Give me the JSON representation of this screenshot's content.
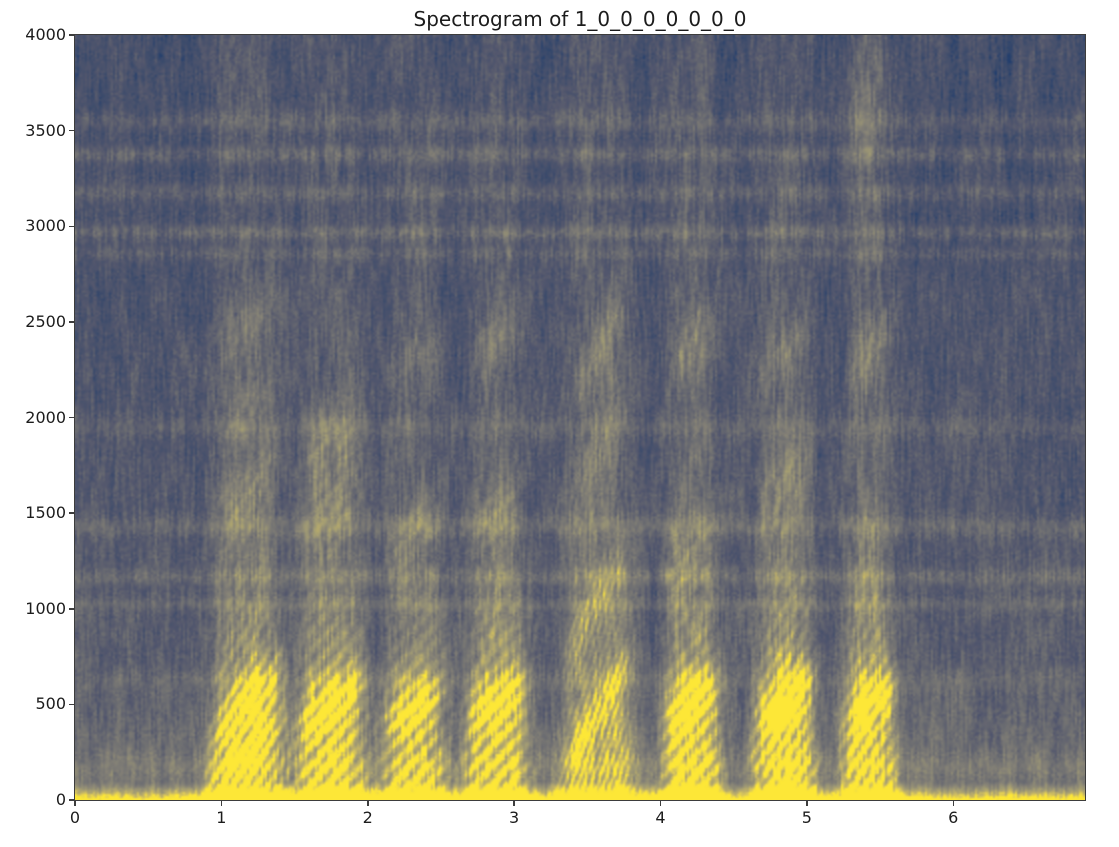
{
  "chart_data": {
    "type": "heatmap",
    "subtype": "audio-spectrogram",
    "title": "Spectrogram of 1_0_0_0_0_0_0_0",
    "xlabel": "",
    "ylabel": "",
    "xlim": [
      0,
      6.9
    ],
    "ylim": [
      0,
      4000
    ],
    "xticks": [
      0,
      1,
      2,
      3,
      4,
      5,
      6
    ],
    "yticks": [
      0,
      500,
      1000,
      1500,
      2000,
      2500,
      3000,
      3500,
      4000
    ],
    "grid": false,
    "legend": false,
    "colormap": {
      "name": "cividis",
      "stops": [
        [
          0.0,
          "#00224e"
        ],
        [
          0.12,
          "#0f3570"
        ],
        [
          0.25,
          "#3a4a6b"
        ],
        [
          0.38,
          "#53576d"
        ],
        [
          0.5,
          "#6b6c71"
        ],
        [
          0.62,
          "#838076"
        ],
        [
          0.75,
          "#a09a74"
        ],
        [
          0.86,
          "#c0b168"
        ],
        [
          0.94,
          "#e2cf54"
        ],
        [
          1.0,
          "#fde737"
        ]
      ]
    },
    "background": {
      "top_level": 0.33,
      "low_boost": 0.13,
      "low_boost_power": 1.3,
      "floor_hz": 750,
      "floor_boost": 0.09,
      "bottom_line_hz": 90,
      "bottom_line_boost": 0.5
    },
    "noise": {
      "seed": 7,
      "grain": 0.12,
      "vertical_threads": 0.16,
      "column_streaks": 0.1,
      "band_modulation": 0.9
    },
    "horizontal_bands_hz": [
      {
        "freq": 3550,
        "half_width": 55,
        "amplitude": 0.09
      },
      {
        "freq": 3380,
        "half_width": 45,
        "amplitude": 0.11
      },
      {
        "freq": 3180,
        "half_width": 45,
        "amplitude": 0.09
      },
      {
        "freq": 2970,
        "half_width": 40,
        "amplitude": 0.12
      },
      {
        "freq": 2860,
        "half_width": 35,
        "amplitude": 0.07
      },
      {
        "freq": 1950,
        "half_width": 50,
        "amplitude": 0.07
      },
      {
        "freq": 1430,
        "half_width": 55,
        "amplitude": 0.1
      },
      {
        "freq": 1165,
        "half_width": 45,
        "amplitude": 0.1
      },
      {
        "freq": 1020,
        "half_width": 35,
        "amplitude": 0.08
      },
      {
        "freq": 620,
        "half_width": 50,
        "amplitude": 0.05
      },
      {
        "freq": 175,
        "half_width": 70,
        "amplitude": 0.07
      }
    ],
    "utterances": [
      {
        "start_s": 0.98,
        "end_s": 1.38,
        "f0_hz": 100,
        "bend_hz": 500,
        "strength": 0.52,
        "tail": 0.09,
        "formant_blobs": [
          [
            500,
            130,
            0.4
          ],
          [
            260,
            90,
            0.28
          ],
          [
            1600,
            200,
            0.16
          ],
          [
            2100,
            200,
            0.14
          ],
          [
            2480,
            170,
            0.16
          ]
        ]
      },
      {
        "start_s": 1.55,
        "end_s": 1.95,
        "f0_hz": 100,
        "bend_hz": 350,
        "strength": 0.5,
        "tail": 0.09,
        "formant_blobs": [
          [
            500,
            130,
            0.38
          ],
          [
            1500,
            170,
            0.14
          ],
          [
            1850,
            220,
            0.18
          ]
        ]
      },
      {
        "start_s": 2.14,
        "end_s": 2.5,
        "f0_hz": 100,
        "bend_hz": 300,
        "strength": 0.46,
        "tail": 0.07,
        "formant_blobs": [
          [
            480,
            120,
            0.36
          ],
          [
            1400,
            140,
            0.15
          ],
          [
            2330,
            150,
            0.16
          ]
        ]
      },
      {
        "start_s": 2.7,
        "end_s": 3.06,
        "f0_hz": 100,
        "bend_hz": 300,
        "strength": 0.48,
        "tail": 0.09,
        "formant_blobs": [
          [
            500,
            130,
            0.38
          ],
          [
            1520,
            150,
            0.13
          ],
          [
            2420,
            160,
            0.14
          ]
        ]
      },
      {
        "start_s": 3.38,
        "end_s": 3.78,
        "f0_hz": 100,
        "bend_hz": 900,
        "strength": 0.4,
        "tail": 0.1,
        "formant_blobs": [
          [
            460,
            120,
            0.28
          ],
          [
            1050,
            150,
            0.2
          ],
          [
            1800,
            250,
            0.16
          ],
          [
            2350,
            170,
            0.17
          ]
        ]
      },
      {
        "start_s": 4.05,
        "end_s": 4.38,
        "f0_hz": 100,
        "bend_hz": 300,
        "strength": 0.5,
        "tail": 0.11,
        "formant_blobs": [
          [
            500,
            130,
            0.38
          ],
          [
            2380,
            170,
            0.19
          ],
          [
            1300,
            160,
            0.11
          ]
        ]
      },
      {
        "start_s": 4.68,
        "end_s": 5.02,
        "f0_hz": 100,
        "bend_hz": 420,
        "strength": 0.54,
        "tail": 0.1,
        "formant_blobs": [
          [
            500,
            140,
            0.42
          ],
          [
            1650,
            200,
            0.14
          ],
          [
            2350,
            160,
            0.17
          ]
        ]
      },
      {
        "start_s": 5.28,
        "end_s": 5.58,
        "f0_hz": 100,
        "bend_hz": 350,
        "strength": 0.5,
        "tail": 0.13,
        "formant_blobs": [
          [
            480,
            130,
            0.38
          ],
          [
            2330,
            160,
            0.17
          ],
          [
            3650,
            260,
            0.09
          ]
        ]
      }
    ],
    "axis_color": "#3d3d3d",
    "text_color": "#1c1c1c",
    "figure_background": "#ffffff"
  }
}
